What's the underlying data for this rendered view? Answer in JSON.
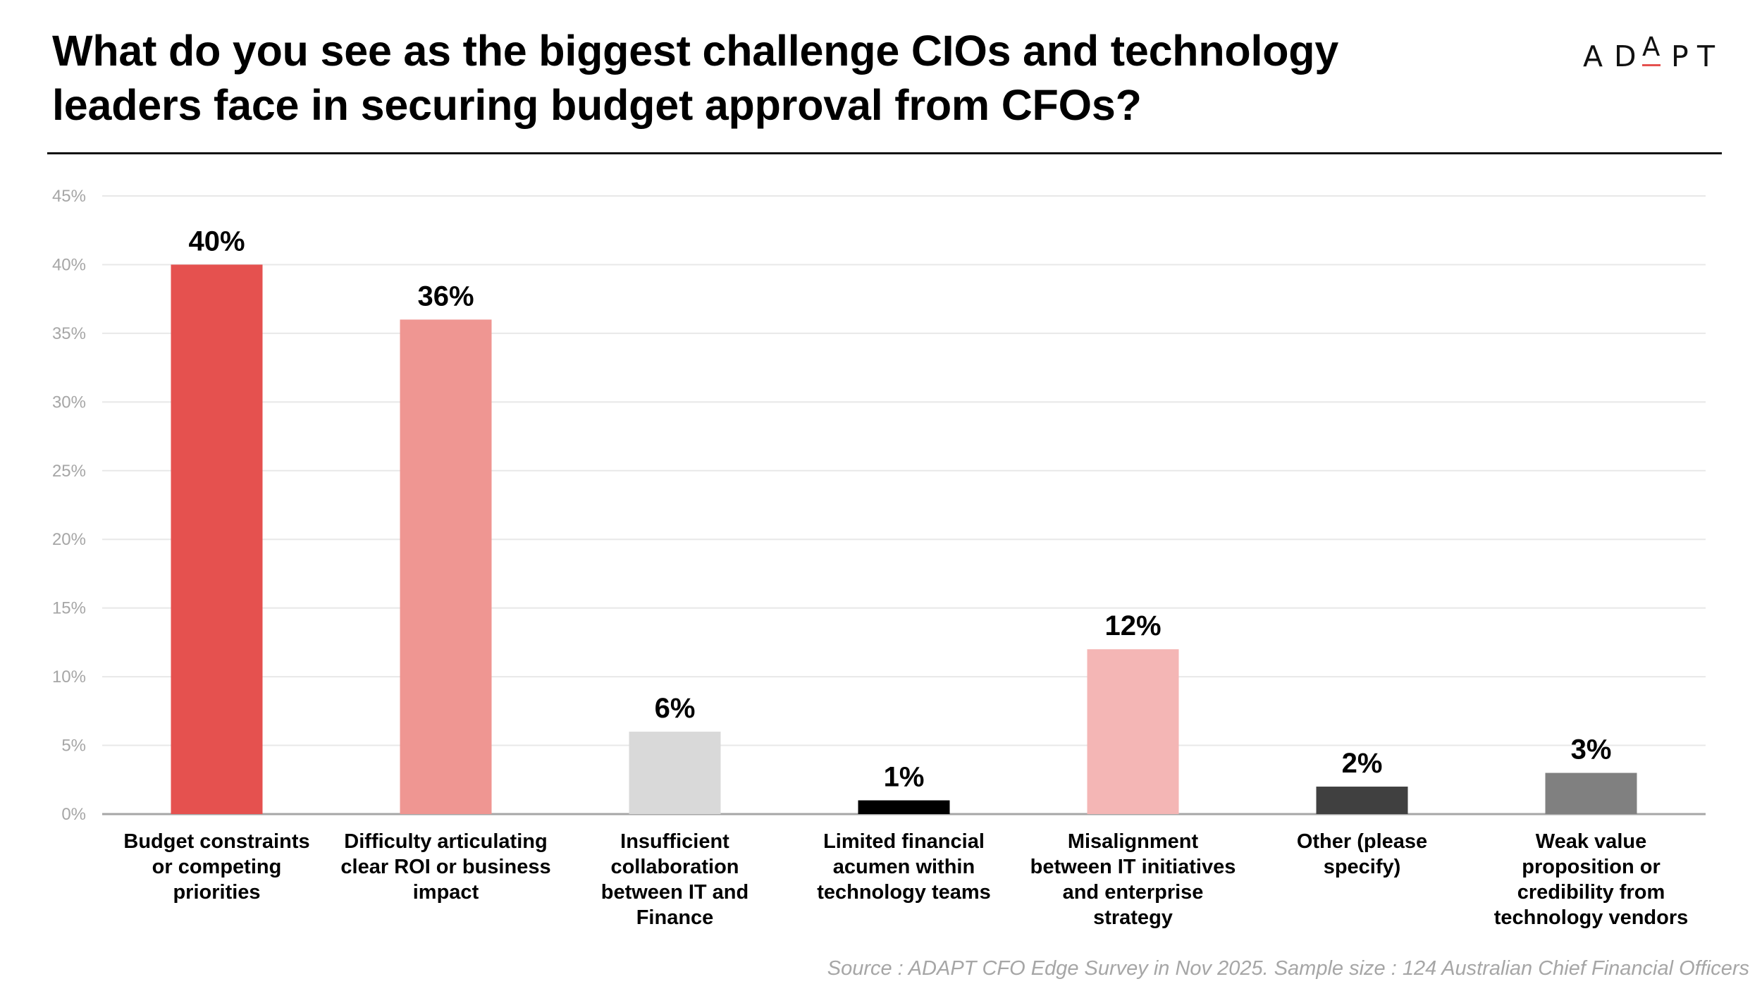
{
  "header": {
    "title_lines": [
      "What do you see as the biggest challenge CIOs and technology",
      "leaders face in securing budget approval from CFOs?"
    ],
    "logo": {
      "letters": [
        "A",
        "D",
        "A",
        "P",
        "T"
      ],
      "accent_color": "#E5514F"
    }
  },
  "footer": {
    "source": "Source : ADAPT CFO Edge Survey in Nov 2025. Sample size : 124 Australian Chief Financial Officers"
  },
  "chart_data": {
    "type": "bar",
    "title": "What do you see as the biggest challenge CIOs and technology leaders face in securing budget approval from CFOs?",
    "xlabel": "",
    "ylabel": "",
    "ylim": [
      0,
      45
    ],
    "y_ticks": [
      0,
      5,
      10,
      15,
      20,
      25,
      30,
      35,
      40,
      45
    ],
    "y_tick_labels": [
      "0%",
      "5%",
      "10%",
      "15%",
      "20%",
      "25%",
      "30%",
      "35%",
      "40%",
      "45%"
    ],
    "grid": true,
    "legend": "none",
    "categories": [
      [
        "Budget constraints",
        "or competing",
        "priorities"
      ],
      [
        "Difficulty articulating",
        "clear ROI or business",
        "impact"
      ],
      [
        "Insufficient",
        "collaboration",
        "between IT and",
        "Finance"
      ],
      [
        "Limited financial",
        "acumen within",
        "technology teams"
      ],
      [
        "Misalignment",
        "between IT initiatives",
        "and enterprise",
        "strategy"
      ],
      [
        "Other (please",
        "specify)"
      ],
      [
        "Weak value",
        "proposition or",
        "credibility from",
        "technology vendors"
      ]
    ],
    "values": [
      40,
      36,
      6,
      1,
      12,
      2,
      3
    ],
    "data_labels": [
      "40%",
      "36%",
      "6%",
      "1%",
      "12%",
      "2%",
      "3%"
    ],
    "colors": [
      "#E5514F",
      "#EF9692",
      "#D9D9D9",
      "#000000",
      "#F4B6B5",
      "#404040",
      "#808080"
    ],
    "gridline_color": "#E8E8E8",
    "axis_color": "#A6A6A6",
    "tick_label_color": "#A6A6A6"
  }
}
